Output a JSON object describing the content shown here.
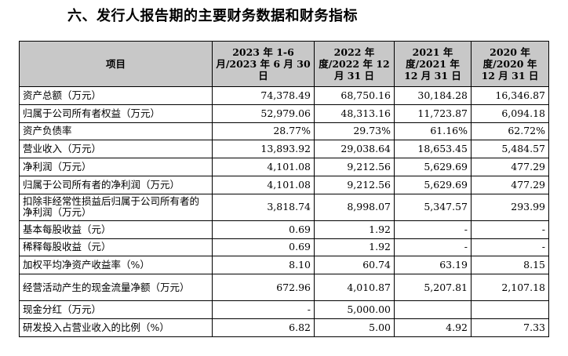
{
  "title": "六、发行人报告期的主要财务数据和财务指标",
  "headers": [
    "项目",
    "2023 年 1-6 月/2023 年 6 月 30 日",
    "2022 年度/2022 年 12 月 31 日",
    "2021 年度/2021 年 12 月 31 日",
    "2020 年度/2020 年 12 月 31 日"
  ],
  "rows": [
    {
      "label": "资产总额（万元）",
      "v": [
        "74,378.49",
        "68,750.16",
        "30,184.28",
        "16,346.87"
      ]
    },
    {
      "label": "归属于公司所有者权益（万元）",
      "v": [
        "52,979.06",
        "48,313.16",
        "11,723.87",
        "6,094.18"
      ]
    },
    {
      "label": "资产负债率",
      "v": [
        "28.77%",
        "29.73%",
        "61.16%",
        "62.72%"
      ]
    },
    {
      "label": "营业收入（万元）",
      "v": [
        "13,893.92",
        "29,038.64",
        "18,653.45",
        "5,484.57"
      ]
    },
    {
      "label": "净利润（万元）",
      "v": [
        "4,101.08",
        "9,212.56",
        "5,629.69",
        "477.29"
      ]
    },
    {
      "label": "归属于公司所有者的净利润（万元）",
      "v": [
        "4,101.08",
        "9,212.56",
        "5,629.69",
        "477.29"
      ]
    },
    {
      "label": "扣除非经常性损益后归属于公司所有者的净利润（万元）",
      "v": [
        "3,818.74",
        "8,998.07",
        "5,347.57",
        "293.99"
      ],
      "tall": true
    },
    {
      "label": "基本每股收益（元）",
      "v": [
        "0.69",
        "1.92",
        "-",
        "-"
      ]
    },
    {
      "label": "稀释每股收益（元）",
      "v": [
        "0.69",
        "1.92",
        "-",
        "-"
      ]
    },
    {
      "label": "加权平均净资产收益率（%）",
      "v": [
        "8.10",
        "60.74",
        "63.19",
        "8.15"
      ]
    },
    {
      "label": "经营活动产生的现金流量净额（万元）",
      "v": [
        "672.96",
        "4,010.87",
        "5,207.81",
        "2,107.18"
      ],
      "tall": true
    },
    {
      "label": "现金分红（万元）",
      "v": [
        "-",
        "5,000.00",
        "",
        ""
      ]
    },
    {
      "label": "研发投入占营业收入的比例（%）",
      "v": [
        "6.82",
        "5.00",
        "4.92",
        "7.33"
      ]
    }
  ]
}
